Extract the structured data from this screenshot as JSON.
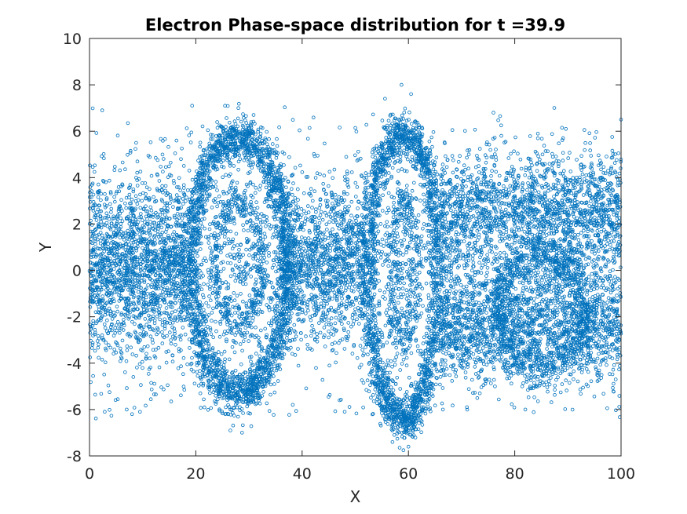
{
  "chart_data": {
    "type": "scatter",
    "title": "Electron Phase-space distribution for t =39.9",
    "xlabel": "X",
    "ylabel": "Y",
    "xlim": [
      0,
      100
    ],
    "ylim": [
      -8,
      10
    ],
    "x_ticks": [
      "0",
      "20",
      "40",
      "60",
      "80",
      "100"
    ],
    "y_ticks": [
      "-8",
      "-6",
      "-4",
      "-2",
      "0",
      "2",
      "4",
      "6",
      "8",
      "10"
    ],
    "grid": false,
    "legend": "none",
    "marker": "open-circle",
    "color": "#0072BD",
    "sample_points": [
      [
        25.5,
        7.1
      ],
      [
        2.4,
        6.9
      ],
      [
        19.3,
        7.1
      ],
      [
        58.7,
        8.0
      ],
      [
        60.5,
        7.6
      ],
      [
        55.6,
        7.4
      ],
      [
        76.0,
        6.8
      ],
      [
        28.0,
        7.0
      ],
      [
        26.5,
        -6.9
      ],
      [
        28.7,
        -7.0
      ],
      [
        57.0,
        -7.4
      ],
      [
        60.0,
        -7.6
      ],
      [
        7.0,
        -6.0
      ],
      [
        9.5,
        -6.1
      ],
      [
        8.0,
        -6.2
      ],
      [
        82.0,
        -6.0
      ],
      [
        100.0,
        6.5
      ],
      [
        99.0,
        -4.7
      ],
      [
        48.0,
        -6.1
      ],
      [
        71.0,
        -5.9
      ]
    ],
    "structures": [
      {
        "kind": "band",
        "x_range": [
          0,
          18
        ],
        "y_range": [
          -4.5,
          4.5
        ]
      },
      {
        "kind": "vortex-ring",
        "center": [
          28,
          0.5
        ],
        "half_width": 8.5,
        "y_range": [
          -6,
          6.5
        ]
      },
      {
        "kind": "band",
        "x_range": [
          36,
          52
        ],
        "y_range": [
          -4.5,
          4.5
        ]
      },
      {
        "kind": "vortex-ring",
        "center": [
          59,
          0.0
        ],
        "half_width": 6.5,
        "y_range": [
          -7,
          6.5
        ]
      },
      {
        "kind": "band",
        "x_range": [
          66,
          100
        ],
        "y_range": [
          -4.5,
          5.0
        ]
      },
      {
        "kind": "vortex-ring",
        "center": [
          85,
          -1.5
        ],
        "half_width": 8,
        "y_range": [
          -5,
          2
        ]
      }
    ]
  }
}
